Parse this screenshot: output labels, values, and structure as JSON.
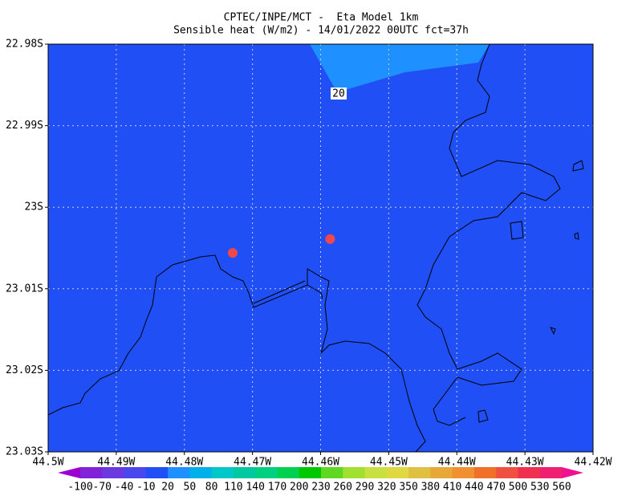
{
  "chart_data": {
    "type": "map",
    "title": "CPTEC/INPE/MCT -  Eta Model 1km",
    "subtitle": "Sensible heat (W/m2) - 14/01/2022 00UTC fct=37h",
    "xlim": [
      -44.5,
      -44.42
    ],
    "ylim": [
      -23.03,
      -22.98
    ],
    "xticks": [
      {
        "value": -44.5,
        "label": "44.5W"
      },
      {
        "value": -44.49,
        "label": "44.49W"
      },
      {
        "value": -44.48,
        "label": "44.48W"
      },
      {
        "value": -44.47,
        "label": "44.47W"
      },
      {
        "value": -44.46,
        "label": "44.46W"
      },
      {
        "value": -44.45,
        "label": "44.45W"
      },
      {
        "value": -44.44,
        "label": "44.44W"
      },
      {
        "value": -44.43,
        "label": "44.43W"
      },
      {
        "value": -44.42,
        "label": "44.42W"
      }
    ],
    "yticks": [
      {
        "value": -22.98,
        "label": "22.98S"
      },
      {
        "value": -22.99,
        "label": "22.99S"
      },
      {
        "value": -23,
        "label": "23S"
      },
      {
        "value": -23.01,
        "label": "23.01S"
      },
      {
        "value": -23.02,
        "label": "23.02S"
      },
      {
        "value": -23.03,
        "label": "23.03S"
      }
    ],
    "grid": true,
    "contour_label": 20,
    "points": {
      "color": "#f04848",
      "lon": [
        -44.4729,
        -44.4586
      ],
      "lat": [
        -23.0056,
        -23.0039
      ]
    },
    "colorbar": {
      "levels": [
        -100,
        -70,
        -40,
        -10,
        20,
        50,
        80,
        110,
        140,
        170,
        200,
        230,
        260,
        290,
        320,
        350,
        380,
        410,
        440,
        470,
        500,
        530,
        560
      ],
      "colors": [
        "#9b00d0",
        "#8222d8",
        "#6a3ae0",
        "#4a48ec",
        "#2050f5",
        "#1e90ff",
        "#00b0e8",
        "#00c8c8",
        "#00c8a0",
        "#00d080",
        "#00d050",
        "#00c800",
        "#60d820",
        "#a0e030",
        "#c8e040",
        "#e0d840",
        "#e0c040",
        "#e8a838",
        "#f09030",
        "#f07028",
        "#f05040",
        "#f03050",
        "#f02070",
        "#f01090"
      ]
    }
  }
}
